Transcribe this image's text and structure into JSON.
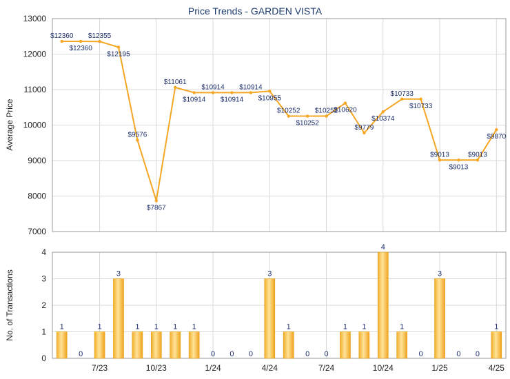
{
  "chart_data": [
    {
      "type": "line",
      "title": "Price Trends - GARDEN VISTA",
      "ylabel": "Average Price",
      "ylim": [
        7000,
        13000
      ],
      "yticks": [
        7000,
        8000,
        9000,
        10000,
        11000,
        12000,
        13000
      ],
      "grid": true,
      "color": "#f5a623",
      "series": [
        {
          "values": [
            12360,
            12360,
            12355,
            12195,
            9576,
            7867,
            11061,
            10914,
            10914,
            10914,
            10914,
            10955,
            10252,
            10252,
            10252,
            10620,
            9779,
            10374,
            10733,
            10733,
            9013,
            9013,
            9013,
            9870
          ],
          "labels": [
            "$12360",
            "$12360",
            "$12355",
            "$12195",
            "$9576",
            "$7867",
            "$11061",
            "$10914",
            "$10914",
            "$10914",
            "$10914",
            "$10955",
            "$10252",
            "$10252",
            "$10252",
            "$10620",
            "$9779",
            "$10374",
            "$10733",
            "$10733",
            "$9013",
            "$9013",
            "$9013",
            "$9870"
          ]
        }
      ]
    },
    {
      "type": "bar",
      "ylabel": "No. of Transactions",
      "ylim": [
        0,
        4
      ],
      "yticks": [
        0,
        1,
        2,
        3,
        4
      ],
      "grid": true,
      "color": "#f5a623",
      "xticklabels": [
        {
          "index": 2,
          "label": "7/23"
        },
        {
          "index": 5,
          "label": "10/23"
        },
        {
          "index": 8,
          "label": "1/24"
        },
        {
          "index": 11,
          "label": "4/24"
        },
        {
          "index": 14,
          "label": "7/24"
        },
        {
          "index": 17,
          "label": "10/24"
        },
        {
          "index": 20,
          "label": "1/25"
        },
        {
          "index": 23,
          "label": "4/25"
        }
      ],
      "values": [
        1,
        0,
        1,
        3,
        1,
        1,
        1,
        1,
        0,
        0,
        0,
        3,
        1,
        0,
        0,
        1,
        1,
        4,
        1,
        0,
        3,
        0,
        0,
        1
      ]
    }
  ]
}
